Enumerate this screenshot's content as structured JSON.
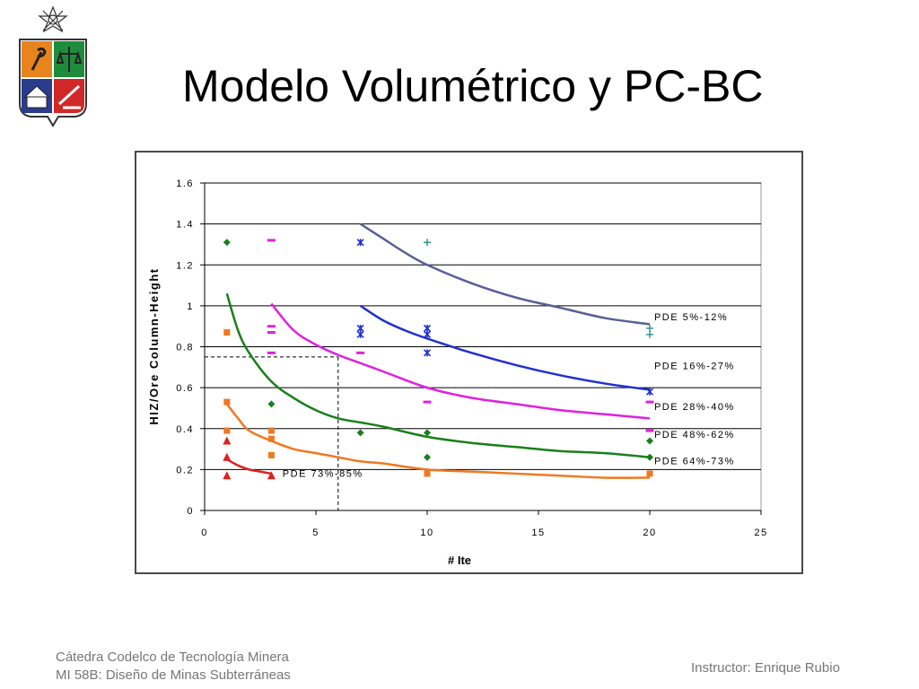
{
  "slide": {
    "title": "Modelo Volumétrico y PC-BC",
    "footer_left_1": "Cátedra Codelco de Tecnología Minera",
    "footer_left_2": "MI 58B: Diseño de Minas Subterráneas",
    "footer_right": "Instructor: Enrique Rubio",
    "logo": {
      "icons": [
        "star-emblem-icon",
        "shield-icon",
        "torch-icon",
        "scales-icon",
        "temple-icon",
        "pen-icon"
      ],
      "colors": {
        "orange": "#E8841E",
        "green": "#1E8C3C",
        "blue": "#2A3C8C",
        "red": "#D02828",
        "outline": "#333333"
      }
    }
  },
  "chart_data": {
    "type": "scatter",
    "title": "",
    "xlabel": "# Ite",
    "ylabel": "HIZ/Ore Column-Height",
    "xlim": [
      0,
      25
    ],
    "ylim": [
      0,
      1.6
    ],
    "x_ticks": [
      "0",
      "5",
      "10",
      "15",
      "20",
      "25"
    ],
    "y_ticks": [
      "0",
      "0.2",
      "0.4",
      "0.6",
      "0.8",
      "1",
      "1.2",
      "1.4",
      "1.6"
    ],
    "grid": "horizontal",
    "legend": "none",
    "reference_lines": {
      "x": 6,
      "y": 0.75
    },
    "series": [
      {
        "name": "PDE 5%-12%",
        "color": "#5A5F96",
        "curve": {
          "x": [
            7,
            8,
            9,
            10,
            12,
            14,
            16,
            18,
            20
          ],
          "y": [
            1.4,
            1.33,
            1.26,
            1.2,
            1.11,
            1.04,
            0.99,
            0.94,
            0.91
          ]
        }
      },
      {
        "name": "PDE 16%-27%",
        "color": "#1F2FD0",
        "curve": {
          "x": [
            7,
            8,
            9,
            10,
            12,
            14,
            16,
            18,
            20
          ],
          "y": [
            1.0,
            0.93,
            0.88,
            0.84,
            0.77,
            0.71,
            0.66,
            0.62,
            0.59
          ]
        }
      },
      {
        "name": "PDE 28%-40%",
        "color": "#E020E0",
        "curve": {
          "x": [
            3,
            4,
            5,
            6,
            7,
            8,
            10,
            12,
            14,
            16,
            18,
            20
          ],
          "y": [
            1.01,
            0.88,
            0.81,
            0.76,
            0.72,
            0.68,
            0.6,
            0.55,
            0.52,
            0.49,
            0.47,
            0.45
          ]
        }
      },
      {
        "name": "PDE 48%-62%",
        "color": "#1A7F1A",
        "curve": {
          "x": [
            1,
            1.5,
            2,
            3,
            4,
            5,
            6,
            7,
            8,
            10,
            12,
            14,
            16,
            18,
            20
          ],
          "y": [
            1.06,
            0.88,
            0.77,
            0.63,
            0.55,
            0.49,
            0.45,
            0.43,
            0.41,
            0.36,
            0.33,
            0.31,
            0.29,
            0.28,
            0.26
          ]
        }
      },
      {
        "name": "PDE 64%-73%",
        "color": "#F07820",
        "curve": {
          "x": [
            1,
            1.5,
            2,
            3,
            4,
            5,
            6,
            7,
            8,
            10,
            12,
            14,
            16,
            18,
            20
          ],
          "y": [
            0.52,
            0.45,
            0.39,
            0.34,
            0.3,
            0.28,
            0.26,
            0.24,
            0.23,
            0.2,
            0.19,
            0.18,
            0.17,
            0.16,
            0.16
          ]
        }
      },
      {
        "name": "PDE 73%-85%",
        "color": "#E02020",
        "curve": {
          "x": [
            1,
            1.5,
            2,
            2.5,
            3
          ],
          "y": [
            0.25,
            0.22,
            0.2,
            0.19,
            0.18
          ]
        }
      }
    ],
    "markers": [
      {
        "shape": "diamond",
        "color": "#1A7F1A",
        "points": [
          [
            1,
            1.31
          ],
          [
            3,
            0.52
          ],
          [
            7,
            0.38
          ],
          [
            10,
            0.38
          ],
          [
            10,
            0.26
          ],
          [
            20,
            0.34
          ],
          [
            20,
            0.26
          ]
        ]
      },
      {
        "shape": "square",
        "color": "#F07820",
        "points": [
          [
            1,
            0.87
          ],
          [
            1,
            0.53
          ],
          [
            1,
            0.39
          ],
          [
            3,
            0.39
          ],
          [
            3,
            0.35
          ],
          [
            3,
            0.27
          ],
          [
            10,
            0.18
          ],
          [
            20,
            0.18
          ]
        ]
      },
      {
        "shape": "triangle",
        "color": "#E02020",
        "points": [
          [
            1,
            0.34
          ],
          [
            1,
            0.26
          ],
          [
            1,
            0.17
          ],
          [
            3,
            0.17
          ]
        ]
      },
      {
        "shape": "dash",
        "color": "#E020E0",
        "points": [
          [
            3,
            1.32
          ],
          [
            3,
            0.9
          ],
          [
            3,
            0.87
          ],
          [
            3,
            0.77
          ],
          [
            7,
            0.77
          ],
          [
            10,
            0.53
          ],
          [
            20,
            0.53
          ],
          [
            20,
            0.39
          ]
        ]
      },
      {
        "shape": "star",
        "color": "#1F2FD0",
        "points": [
          [
            7,
            1.31
          ],
          [
            7,
            0.89
          ],
          [
            7,
            0.86
          ],
          [
            10,
            0.89
          ],
          [
            10,
            0.86
          ],
          [
            10,
            0.77
          ],
          [
            20,
            0.58
          ]
        ]
      },
      {
        "shape": "plus",
        "color": "#2A8C8C",
        "points": [
          [
            10,
            1.31
          ],
          [
            20,
            0.89
          ],
          [
            20,
            0.86
          ]
        ]
      }
    ],
    "annotations": [
      {
        "text": "PDE 5%-12%",
        "x": 20.2,
        "y": 0.93,
        "color": "#000000"
      },
      {
        "text": "PDE 16%-27%",
        "x": 20.2,
        "y": 0.69,
        "color": "#000000"
      },
      {
        "text": "PDE 28%-40%",
        "x": 20.2,
        "y": 0.49,
        "color": "#000000"
      },
      {
        "text": "PDE 48%-62%",
        "x": 20.2,
        "y": 0.355,
        "color": "#000000"
      },
      {
        "text": "PDE 64%-73%",
        "x": 20.2,
        "y": 0.225,
        "color": "#000000"
      },
      {
        "text": "PDE 73%-85%",
        "x": 3.5,
        "y": 0.165,
        "color": "#000000"
      }
    ]
  }
}
